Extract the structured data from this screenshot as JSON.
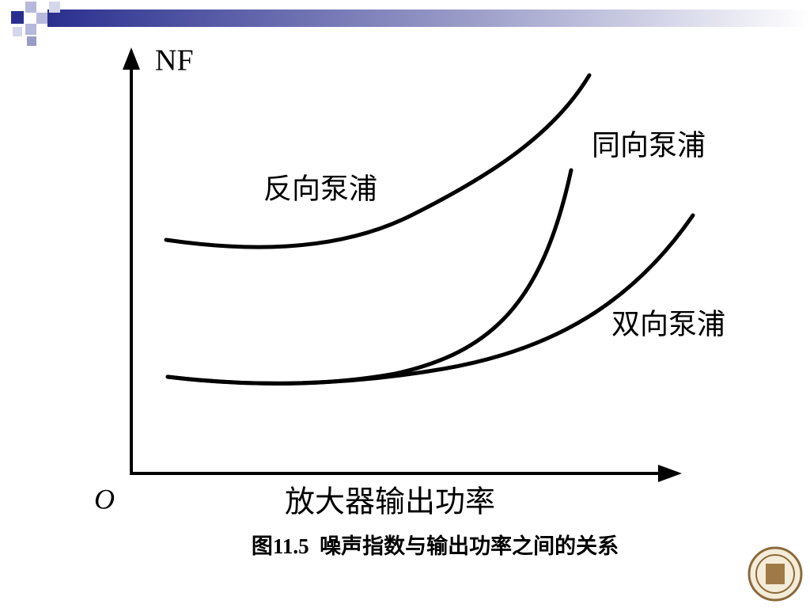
{
  "diagram": {
    "y_axis_label": "NF",
    "origin_label": "O",
    "x_axis_label": "放大器输出功率",
    "curves": [
      {
        "label": "反向泵浦"
      },
      {
        "label": "同向泵浦"
      },
      {
        "label": "双向泵浦"
      }
    ],
    "caption": "图11.5  噪声指数与输出功率之间的关系"
  }
}
